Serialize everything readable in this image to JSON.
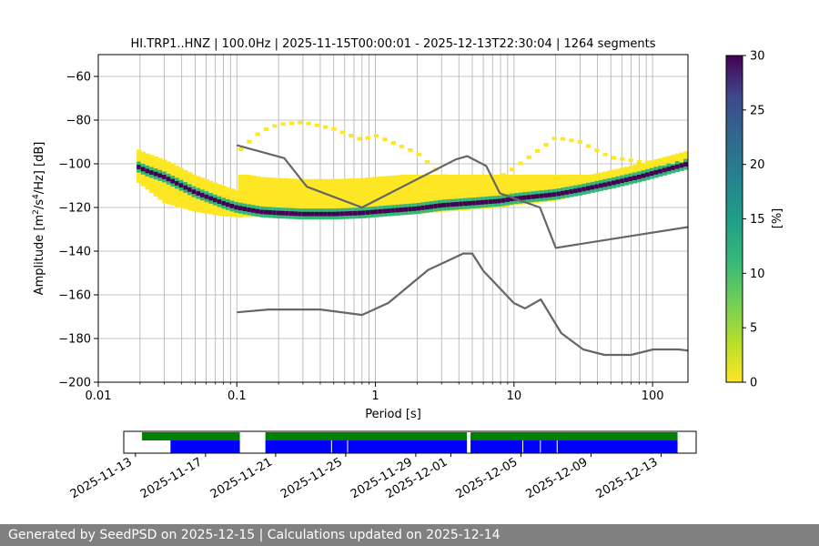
{
  "chart_data": [
    {
      "type": "heatmap",
      "title": "HI.TRP1..HNZ | 100.0Hz | 2025-11-15T00:00:01 - 2025-12-13T22:30:04 | 1264 segments",
      "xlabel": "Period [s]",
      "ylabel_prefix": "Amplitude [m",
      "ylabel_sup1": "2",
      "ylabel_mid": "/s",
      "ylabel_sup2": "4",
      "ylabel_suffix": "/Hz] [dB]",
      "x_scale": "log",
      "xlim": [
        0.01,
        180
      ],
      "ylim": [
        -200,
        -50
      ],
      "x_ticks": [
        0.01,
        0.1,
        1,
        10,
        100
      ],
      "x_tick_labels": [
        "0.01",
        "0.1",
        "1",
        "10",
        "100"
      ],
      "y_ticks": [
        -200,
        -180,
        -160,
        -140,
        -120,
        -100,
        -80,
        -60
      ],
      "y_tick_labels": [
        "−200",
        "−180",
        "−160",
        "−140",
        "−120",
        "−100",
        "−80",
        "−60"
      ],
      "grid": true,
      "colorbar": {
        "label": "[%]",
        "range": [
          0,
          30
        ],
        "ticks": [
          0,
          5,
          10,
          15,
          20,
          25,
          30
        ],
        "tick_labels": [
          "0",
          "5",
          "10",
          "15",
          "20",
          "25",
          "30"
        ],
        "colormap": "viridis_r"
      },
      "ppsd_mode": {
        "periods": [
          0.019,
          0.022,
          0.03,
          0.05,
          0.08,
          0.1,
          0.15,
          0.2,
          0.3,
          0.5,
          0.8,
          1,
          2,
          3,
          5,
          8,
          10,
          20,
          30,
          50,
          80,
          120,
          180
        ],
        "values": [
          -101,
          -103,
          -106,
          -113,
          -118,
          -120,
          -122,
          -122.5,
          -123,
          -123,
          -122.5,
          -122,
          -120.5,
          -119,
          -118,
          -117,
          -116,
          -114,
          -112,
          -109,
          -106,
          -103,
          -100
        ]
      },
      "ppsd_upper": {
        "periods": [
          0.1,
          0.15,
          0.2,
          0.3,
          0.5,
          0.8,
          1,
          2,
          3,
          5,
          8,
          10,
          20,
          30,
          50,
          80,
          120,
          180
        ],
        "values": [
          -95,
          -85,
          -82,
          -81,
          -84,
          -89,
          -87,
          -95,
          -105,
          -112,
          -106,
          -102,
          -88,
          -90,
          -97,
          -99,
          -100,
          -98
        ]
      },
      "ppsd_lower": {
        "periods": [
          0.019,
          0.03,
          0.05,
          0.08,
          0.1,
          0.2,
          0.3,
          0.5,
          0.8,
          1,
          2,
          3,
          5,
          8,
          10,
          20,
          30,
          50,
          80,
          120,
          180
        ],
        "values": [
          -108,
          -118,
          -122,
          -124,
          -124.5,
          -124,
          -124,
          -124,
          -124,
          -123.5,
          -123,
          -122,
          -121,
          -120,
          -119,
          -117,
          -114,
          -110,
          -106,
          -103,
          -101
        ]
      },
      "series": [
        {
          "name": "NHNM",
          "color": "#666666",
          "x": [
            0.1,
            0.22,
            0.32,
            0.8,
            3.8,
            4.6,
            6.3,
            7.9,
            15.4,
            20,
            354
          ],
          "y": [
            -91.5,
            -97.4,
            -110.5,
            -120,
            -98,
            -96.5,
            -101,
            -113.5,
            -120,
            -138.5,
            -126
          ]
        },
        {
          "name": "NLNM",
          "color": "#666666",
          "x": [
            0.1,
            0.17,
            0.4,
            0.8,
            1.24,
            2.4,
            4.3,
            5,
            6,
            10,
            12,
            15.6,
            21.9,
            31.6,
            45,
            70,
            101,
            154,
            328
          ],
          "y": [
            -168,
            -166.7,
            -166.7,
            -169.2,
            -163.7,
            -148.6,
            -141.1,
            -141.1,
            -149,
            -163.8,
            -166.2,
            -162.1,
            -177.5,
            -185,
            -187.5,
            -187.5,
            -185,
            -185,
            -187.5
          ]
        }
      ]
    },
    {
      "type": "timeline",
      "xlim": [
        "2025-11-12T08:00:00",
        "2025-12-15T00:00:00"
      ],
      "x_tick_labels": [
        "2025-11-13",
        "2025-11-17",
        "2025-11-21",
        "2025-11-25",
        "2025-11-29",
        "2025-12-01",
        "2025-12-05",
        "2025-12-09",
        "2025-12-13"
      ],
      "x_tick_dates": [
        "2025-11-13",
        "2025-11-17",
        "2025-11-21",
        "2025-11-25",
        "2025-11-29",
        "2025-12-01",
        "2025-12-05",
        "2025-12-09",
        "2025-12-13"
      ],
      "green_color": "#008000",
      "blue_color": "#0000ff",
      "green_spans": [
        [
          "2025-11-13T09:00:00",
          "2025-11-18T23:00:00"
        ],
        [
          "2025-11-20T10:00:00",
          "2025-12-01T22:00:00"
        ],
        [
          "2025-12-02T03:00:00",
          "2025-12-13T22:30:04"
        ]
      ],
      "blue_spans": [
        [
          "2025-11-15T00:00:01",
          "2025-11-18T23:00:00"
        ],
        [
          "2025-11-20T10:00:00",
          "2025-12-01T22:00:00"
        ],
        [
          "2025-12-02T03:00:00",
          "2025-12-13T22:30:04"
        ]
      ],
      "blue_gaps": [
        "2025-11-24T04:00:00",
        "2025-11-25T02:00:00",
        "2025-12-05T02:00:00",
        "2025-12-06T02:00:00",
        "2025-12-07T01:00:00"
      ]
    }
  ],
  "footer": {
    "text": "Generated by SeedPSD on 2025-12-15 | Calculations updated on 2025-12-14"
  }
}
